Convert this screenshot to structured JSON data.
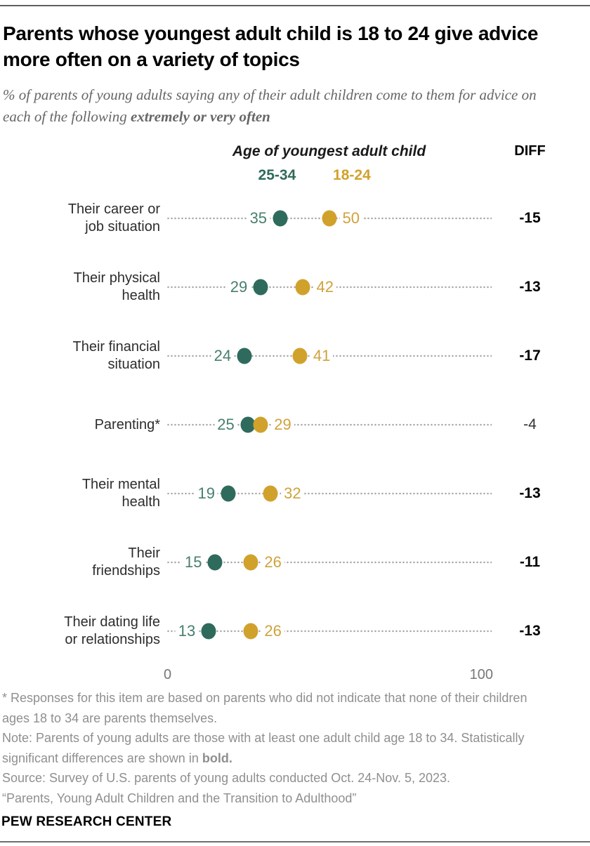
{
  "page": {
    "title": "Parents whose youngest adult child is 18 to 24 give advice more often on a variety of topics",
    "subtitle_regular": "% of parents of young adults saying any of their adult children come to them for advice on each of the following ",
    "subtitle_bold": "extremely or very often",
    "brand": "PEW RESEARCH CENTER"
  },
  "chart_data": {
    "type": "scatter",
    "variant": "paired-dot-plot",
    "legend_title": "Age of youngest adult child",
    "diff_header": "DIFF",
    "legend": [
      {
        "label": "25-34",
        "color": "#2f6b5c"
      },
      {
        "label": "18-24",
        "color": "#d1a22b"
      }
    ],
    "categories": [
      "Their career or job situation",
      "Their physical health",
      "Their financial situation",
      "Parenting*",
      "Their mental health",
      "Their friendships",
      "Their dating life or relationships"
    ],
    "series": [
      {
        "name": "25-34",
        "values": [
          35,
          29,
          24,
          25,
          19,
          15,
          13
        ]
      },
      {
        "name": "18-24",
        "values": [
          50,
          42,
          41,
          29,
          32,
          26,
          26
        ]
      }
    ],
    "rows": [
      {
        "label_lines": [
          "Their career or",
          "job situation"
        ],
        "older": 35,
        "younger": 50,
        "diff": "-15",
        "diff_bold": true
      },
      {
        "label_lines": [
          "Their physical",
          "health"
        ],
        "older": 29,
        "younger": 42,
        "diff": "-13",
        "diff_bold": true
      },
      {
        "label_lines": [
          "Their financial",
          "situation"
        ],
        "older": 24,
        "younger": 41,
        "diff": "-17",
        "diff_bold": true
      },
      {
        "label_lines": [
          "Parenting*"
        ],
        "older": 25,
        "younger": 29,
        "diff": "-4",
        "diff_bold": false
      },
      {
        "label_lines": [
          "Their mental",
          "health"
        ],
        "older": 19,
        "younger": 32,
        "diff": "-13",
        "diff_bold": true
      },
      {
        "label_lines": [
          "Their",
          "friendships"
        ],
        "older": 15,
        "younger": 26,
        "diff": "-11",
        "diff_bold": true
      },
      {
        "label_lines": [
          "Their dating life",
          "or relationships"
        ],
        "older": 13,
        "younger": 26,
        "diff": "-13",
        "diff_bold": true
      }
    ],
    "xlim": [
      0,
      100
    ],
    "axis_ticks": [
      "0",
      "100"
    ],
    "grid": false,
    "legend_position": "top"
  },
  "notes": {
    "footnote": "* Responses for this item are based on parents who did not indicate that none of their children ages 18 to 34 are parents themselves.",
    "note_regular": "Note: Parents of young adults are those with at least one adult child age 18 to 34. Statistically significant differences are shown in ",
    "note_bold": "bold.",
    "source": "Source: Survey of U.S. parents of young adults conducted Oct. 24-Nov. 5, 2023.",
    "quote": "“Parents, Young Adult Children and the Transition to Adulthood”"
  },
  "colors": {
    "series_older": "#2f6b5c",
    "series_younger": "#d1a22b",
    "value_text_older": "#477f6e",
    "value_text_younger": "#cfa23c",
    "leader_dots": "#a3a3a3",
    "notes_gray": "#8f8f8f",
    "subtitle_gray": "#666666",
    "axis_gray": "#777777"
  }
}
